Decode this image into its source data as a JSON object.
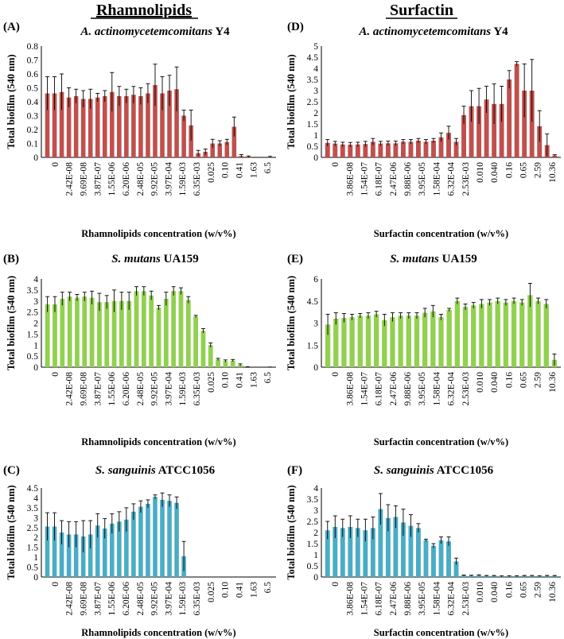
{
  "headers": {
    "left": "Rhamnolipids",
    "right": "Surfactin"
  },
  "ylabel": "Total biofilm (540 nm)",
  "chart_data": [
    {
      "type": "bar",
      "panel_label": "(A)",
      "title_italic": "A. actinomycetemcomitans",
      "title_strain": " Y4",
      "xlabel": "Rhamnolipids concentration (w/v%)",
      "ylabel": "Total biofilm (540 nm)",
      "color": "#c0504d",
      "ylim": [
        0,
        0.8
      ],
      "yticks": [
        "0",
        "0.1",
        "0.2",
        "0.3",
        "0.4",
        "0.5",
        "0.6",
        "0.7",
        "0.8"
      ],
      "tick_labels": [
        "0",
        "2.42E-08",
        "9.69E-08",
        "3.87E-07",
        "1.55E-06",
        "6.20E-06",
        "2.48E-05",
        "9.92E-05",
        "3.97E-04",
        "1.59E-03",
        "6.35E-03",
        "0.025",
        "0.10",
        "0.41",
        "1.63",
        "6.5"
      ],
      "values": [
        0.46,
        0.46,
        0.47,
        0.43,
        0.44,
        0.42,
        0.42,
        0.43,
        0.44,
        0.47,
        0.44,
        0.44,
        0.45,
        0.44,
        0.46,
        0.52,
        0.46,
        0.48,
        0.49,
        0.3,
        0.23,
        0.03,
        0.04,
        0.1,
        0.1,
        0.11,
        0.22,
        0.01,
        0.005,
        0.0,
        0.0,
        0.004
      ],
      "errors": [
        0.12,
        0.12,
        0.13,
        0.07,
        0.05,
        0.06,
        0.07,
        0.03,
        0.04,
        0.14,
        0.07,
        0.05,
        0.06,
        0.06,
        0.07,
        0.15,
        0.12,
        0.11,
        0.16,
        0.04,
        0.11,
        0.02,
        0.02,
        0.03,
        0.02,
        0.02,
        0.07,
        0.01,
        0.005,
        0.0,
        0.0,
        0.003
      ]
    },
    {
      "type": "bar",
      "panel_label": "(D)",
      "title_italic": "A. actinomycetemcomitans",
      "title_strain": " Y4",
      "xlabel": "Surfactin concentration (w/v%)",
      "ylabel": "Total biofilm (540 nm)",
      "color": "#c0504d",
      "ylim": [
        0,
        5
      ],
      "yticks": [
        "0",
        "0.5",
        "1",
        "1.5",
        "2",
        "2.5",
        "3",
        "3.5",
        "4",
        "4.5",
        "5"
      ],
      "tick_labels": [
        "0",
        "3.86E-08",
        "1.54E-07",
        "6.18E-07",
        "2.47E-06",
        "9.88E-06",
        "3.95E-05",
        "1.58E-04",
        "6.32E-04",
        "2.53E-03",
        "0.010",
        "0.040",
        "0.16",
        "0.65",
        "2.59",
        "10.36"
      ],
      "values": [
        0.65,
        0.62,
        0.58,
        0.57,
        0.58,
        0.6,
        0.7,
        0.62,
        0.63,
        0.63,
        0.7,
        0.7,
        0.75,
        0.7,
        0.75,
        0.9,
        1.1,
        0.7,
        1.9,
        2.3,
        2.3,
        2.6,
        2.4,
        2.4,
        3.5,
        4.2,
        3.0,
        3.0,
        1.4,
        0.55,
        0.08
      ],
      "errors": [
        0.15,
        0.1,
        0.1,
        0.1,
        0.1,
        0.12,
        0.15,
        0.1,
        0.1,
        0.1,
        0.1,
        0.1,
        0.1,
        0.1,
        0.1,
        0.2,
        0.3,
        0.15,
        0.4,
        0.7,
        0.8,
        0.6,
        0.9,
        0.8,
        0.4,
        0.1,
        1.2,
        1.4,
        0.7,
        0.5,
        0.04
      ]
    },
    {
      "type": "bar",
      "panel_label": "(B)",
      "title_italic": "S. mutans",
      "title_strain": " UA159",
      "xlabel": "Rhamnolipids concentration (w/v%)",
      "ylabel": "Total biofilm (540 nm)",
      "color": "#92d050",
      "ylim": [
        0,
        4
      ],
      "yticks": [
        "0",
        "0.5",
        "1",
        "1.5",
        "2",
        "2.5",
        "3",
        "3.5",
        "4"
      ],
      "tick_labels": [
        "0",
        "2.42E-08",
        "9.69E-08",
        "3.87E-07",
        "1.55E-06",
        "6.20E-06",
        "2.48E-05",
        "9.92E-05",
        "3.97E-04",
        "1.59E-03",
        "6.35E-03",
        "0.025",
        "0.10",
        "0.41",
        "1.63",
        "6.5"
      ],
      "values": [
        2.85,
        2.85,
        3.1,
        3.2,
        3.15,
        3.2,
        3.15,
        2.95,
        2.95,
        3.0,
        3.0,
        3.0,
        3.45,
        3.45,
        3.25,
        2.7,
        3.1,
        3.45,
        3.45,
        3.05,
        2.3,
        1.65,
        1.0,
        0.35,
        0.28,
        0.3,
        0.1,
        0.01,
        0.0,
        0.0,
        0.005
      ],
      "errors": [
        0.35,
        0.35,
        0.3,
        0.2,
        0.15,
        0.2,
        0.3,
        0.4,
        0.3,
        0.5,
        0.4,
        0.4,
        0.2,
        0.2,
        0.2,
        0.1,
        0.3,
        0.2,
        0.15,
        0.15,
        0.05,
        0.1,
        0.1,
        0.05,
        0.05,
        0.05,
        0.05,
        0.01,
        0.0,
        0.0,
        0.005
      ]
    },
    {
      "type": "bar",
      "panel_label": "(E)",
      "title_italic": "S. mutans",
      "title_strain": " UA159",
      "xlabel": "Surfactin concentration (w/v%)",
      "ylabel": "Total biofilm (540 nm)",
      "color": "#92d050",
      "ylim": [
        0,
        6
      ],
      "yticks": [
        "0",
        "1.5",
        "3",
        "4.5",
        "6"
      ],
      "tick_labels": [
        "0",
        "3.86E-08",
        "1.54E-07",
        "6.18E-07",
        "2.47E-06",
        "9.88E-06",
        "3.95E-05",
        "1.58E-04",
        "6.32E-04",
        "2.53E-03",
        "0.010",
        "0.040",
        "0.16",
        "0.65",
        "2.59",
        "10.36"
      ],
      "values": [
        2.9,
        3.3,
        3.35,
        3.4,
        3.5,
        3.5,
        3.6,
        3.2,
        3.4,
        3.5,
        3.5,
        3.5,
        3.7,
        3.8,
        3.4,
        3.9,
        4.5,
        4.1,
        4.2,
        4.3,
        4.4,
        4.5,
        4.4,
        4.5,
        4.4,
        4.9,
        4.5,
        4.3,
        0.5
      ],
      "errors": [
        0.7,
        0.4,
        0.3,
        0.2,
        0.15,
        0.2,
        0.2,
        0.4,
        0.3,
        0.2,
        0.2,
        0.2,
        0.3,
        0.4,
        0.2,
        0.1,
        0.2,
        0.2,
        0.2,
        0.3,
        0.2,
        0.2,
        0.2,
        0.2,
        0.2,
        0.8,
        0.2,
        0.3,
        0.4
      ]
    },
    {
      "type": "bar",
      "panel_label": "(C)",
      "title_italic": "S. sanguinis",
      "title_strain": " ATCC1056",
      "xlabel": "Rhamnolipids concentration (w/v%)",
      "ylabel": "Total biofilm (540 nm)",
      "color": "#4bacc6",
      "ylim": [
        0,
        4.5
      ],
      "yticks": [
        "0",
        "0.5",
        "1",
        "1.5",
        "2",
        "2.5",
        "3",
        "3.5",
        "4",
        "4.5"
      ],
      "tick_labels": [
        "0",
        "2.42E-08",
        "9.69E-08",
        "3.87E-07",
        "1.55E-06",
        "6.20E-06",
        "2.48E-05",
        "9.92E-05",
        "3.97E-04",
        "1.59E-03",
        "6.35E-03",
        "0.025",
        "0.10",
        "0.41",
        "1.63",
        "6.5"
      ],
      "values": [
        2.55,
        2.55,
        2.25,
        2.15,
        2.15,
        2.05,
        2.15,
        2.6,
        2.45,
        2.7,
        2.8,
        2.9,
        3.3,
        3.55,
        3.7,
        4.05,
        3.9,
        3.85,
        3.75,
        1.05,
        0,
        0,
        0,
        0,
        0,
        0,
        0,
        0,
        0,
        0,
        0,
        0
      ],
      "errors": [
        0.7,
        0.7,
        0.6,
        0.65,
        0.65,
        0.8,
        0.7,
        0.6,
        0.5,
        0.5,
        0.5,
        0.6,
        0.4,
        0.3,
        0.2,
        0.1,
        0.35,
        0.3,
        0.3,
        0.75,
        0,
        0,
        0,
        0,
        0,
        0,
        0,
        0,
        0,
        0,
        0,
        0
      ]
    },
    {
      "type": "bar",
      "panel_label": "(F)",
      "title_italic": "S. sanguinis",
      "title_strain": " ATCC1056",
      "xlabel": "Surfactin concentration (w/v%)",
      "ylabel": "Total biofilm (540 nm)",
      "color": "#4bacc6",
      "ylim": [
        0,
        4
      ],
      "yticks": [
        "0",
        "0.5",
        "1",
        "1.5",
        "2",
        "2.5",
        "3",
        "3.5",
        "4"
      ],
      "tick_labels": [
        "0",
        "3.86E-08",
        "1.54E-07",
        "6.18E-07",
        "2.47E-06",
        "9.88E-06",
        "3.95E-05",
        "1.58E-04",
        "6.32E-04",
        "2.53E-03",
        "0.010",
        "0.040",
        "0.16",
        "0.65",
        "2.59",
        "10.36"
      ],
      "values": [
        2.1,
        2.25,
        2.2,
        2.25,
        2.2,
        2.1,
        2.2,
        3.05,
        2.65,
        2.7,
        2.45,
        2.3,
        2.2,
        1.65,
        1.4,
        1.65,
        1.6,
        0.7,
        0.07,
        0.06,
        0.08,
        0.05,
        0.05,
        0.03,
        0.04,
        0.04,
        0.05,
        0.05,
        0.04,
        0.05,
        0.05
      ],
      "errors": [
        0.4,
        0.5,
        0.4,
        0.5,
        0.4,
        0.5,
        0.5,
        0.7,
        0.6,
        0.5,
        0.6,
        0.5,
        0.2,
        0.05,
        0.1,
        0.15,
        0.2,
        0.15,
        0.02,
        0.02,
        0.02,
        0.02,
        0.02,
        0.02,
        0.02,
        0.02,
        0.02,
        0.02,
        0.02,
        0.02,
        0.02
      ]
    }
  ]
}
